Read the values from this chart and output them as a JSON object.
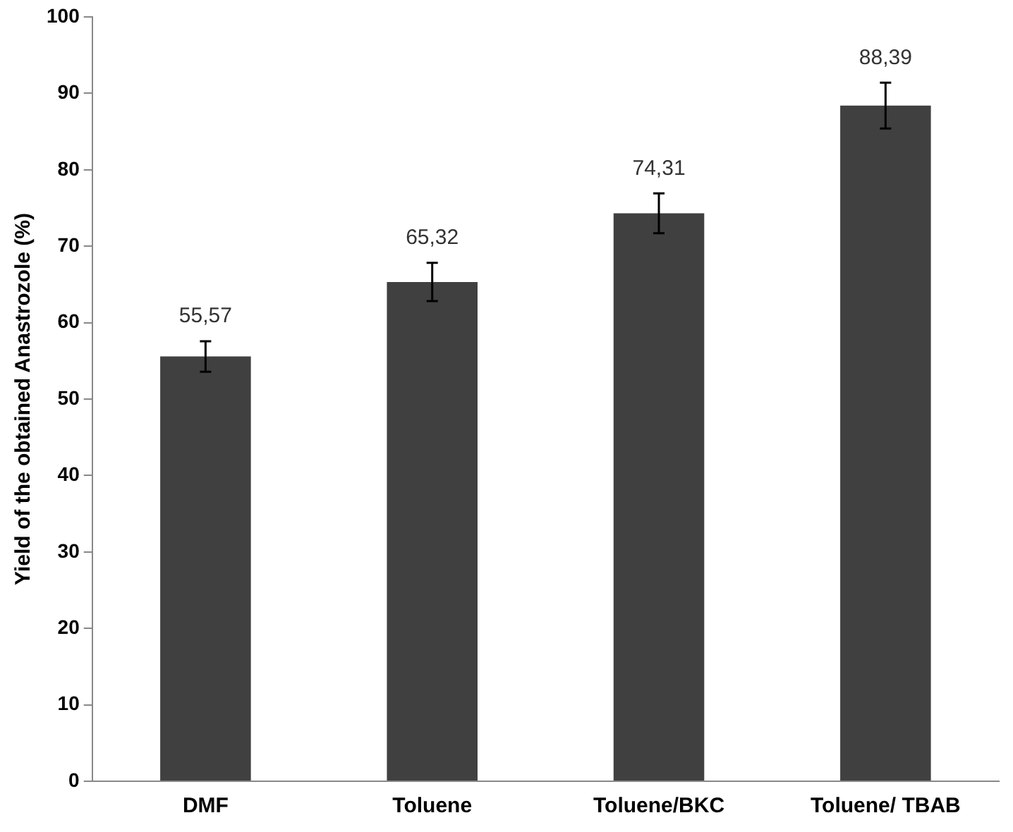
{
  "chart_data": {
    "type": "bar",
    "ylabel": "Yield of the obtained Anastrozole (%)",
    "categories": [
      "DMF",
      "Toluene",
      "Toluene/BKC",
      "Toluene/ TBAB"
    ],
    "values": [
      55.57,
      65.32,
      74.31,
      88.39
    ],
    "errors": [
      2,
      2.5,
      2.6,
      3
    ],
    "value_labels": [
      "55,57",
      "65,32",
      "74,31",
      "88,39"
    ],
    "color": "#404040",
    "ylim": [
      0,
      100
    ],
    "yticks": [
      0,
      10,
      20,
      30,
      40,
      50,
      60,
      70,
      80,
      90,
      100
    ],
    "grid": false,
    "legend": false
  }
}
